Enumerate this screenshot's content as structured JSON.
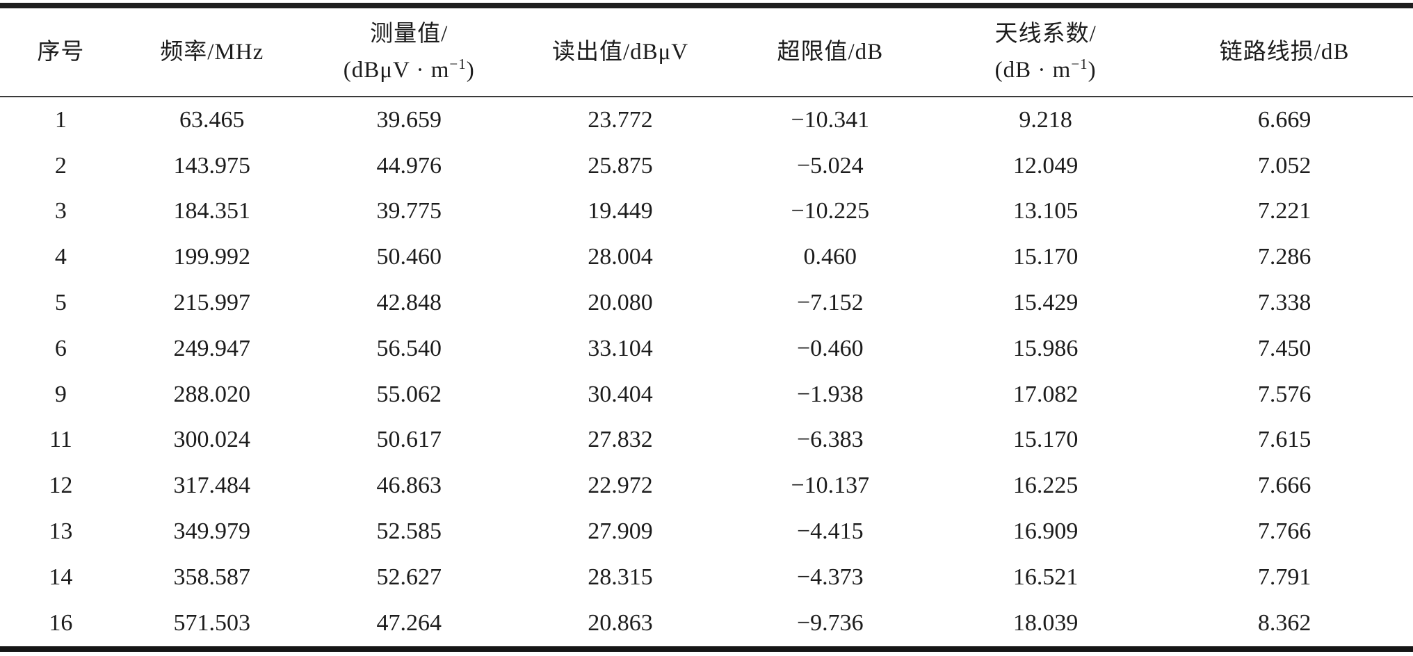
{
  "page": {
    "background_color": "#ffffff",
    "rule_color": "#1e1e1e",
    "text_color": "#1c1c1c"
  },
  "table": {
    "columns": [
      {
        "key": "index",
        "lines": [
          "序号"
        ]
      },
      {
        "key": "frequency",
        "lines": [
          "频率/MHz"
        ]
      },
      {
        "key": "measured",
        "lines": [
          "测量值/"
        ],
        "unit_prefix": "(dBμV · m",
        "unit_sup": "−1",
        "unit_suffix": ")"
      },
      {
        "key": "readout",
        "lines": [
          "读出值/dBμV"
        ]
      },
      {
        "key": "overlimit",
        "lines": [
          "超限值/dB"
        ]
      },
      {
        "key": "antenna",
        "lines": [
          "天线系数/"
        ],
        "unit_prefix": "(dB · m",
        "unit_sup": "−1",
        "unit_suffix": ")"
      },
      {
        "key": "lineloss",
        "lines": [
          "链路线损/dB"
        ]
      }
    ],
    "rows": [
      [
        "1",
        "63.465",
        "39.659",
        "23.772",
        "−10.341",
        "9.218",
        "6.669"
      ],
      [
        "2",
        "143.975",
        "44.976",
        "25.875",
        "−5.024",
        "12.049",
        "7.052"
      ],
      [
        "3",
        "184.351",
        "39.775",
        "19.449",
        "−10.225",
        "13.105",
        "7.221"
      ],
      [
        "4",
        "199.992",
        "50.460",
        "28.004",
        "0.460",
        "15.170",
        "7.286"
      ],
      [
        "5",
        "215.997",
        "42.848",
        "20.080",
        "−7.152",
        "15.429",
        "7.338"
      ],
      [
        "6",
        "249.947",
        "56.540",
        "33.104",
        "−0.460",
        "15.986",
        "7.450"
      ],
      [
        "9",
        "288.020",
        "55.062",
        "30.404",
        "−1.938",
        "17.082",
        "7.576"
      ],
      [
        "11",
        "300.024",
        "50.617",
        "27.832",
        "−6.383",
        "15.170",
        "7.615"
      ],
      [
        "12",
        "317.484",
        "46.863",
        "22.972",
        "−10.137",
        "16.225",
        "7.666"
      ],
      [
        "13",
        "349.979",
        "52.585",
        "27.909",
        "−4.415",
        "16.909",
        "7.766"
      ],
      [
        "14",
        "358.587",
        "52.627",
        "28.315",
        "−4.373",
        "16.521",
        "7.791"
      ],
      [
        "16",
        "571.503",
        "47.264",
        "20.863",
        "−9.736",
        "18.039",
        "8.362"
      ]
    ]
  }
}
